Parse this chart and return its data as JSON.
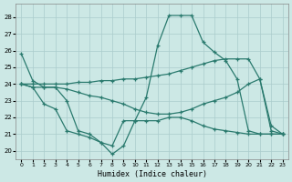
{
  "xlabel": "Humidex (Indice chaleur)",
  "xlim": [
    -0.5,
    23.5
  ],
  "ylim": [
    19.5,
    28.8
  ],
  "yticks": [
    20,
    21,
    22,
    23,
    24,
    25,
    26,
    27,
    28
  ],
  "xticks": [
    0,
    1,
    2,
    3,
    4,
    5,
    6,
    7,
    8,
    9,
    10,
    11,
    12,
    13,
    14,
    15,
    16,
    17,
    18,
    19,
    20,
    21,
    22,
    23
  ],
  "bg_color": "#cce8e5",
  "grid_color": "#aacccc",
  "line_color": "#2a7a6e",
  "series": [
    {
      "x": [
        0,
        1,
        2,
        3,
        4,
        5,
        6,
        7,
        8,
        9,
        10,
        11,
        12,
        13,
        14,
        15,
        16,
        17,
        18,
        19,
        20,
        21,
        22,
        23
      ],
      "y": [
        25.8,
        24.2,
        23.8,
        23.8,
        23.0,
        21.2,
        21.0,
        20.5,
        19.8,
        20.3,
        21.8,
        23.2,
        26.3,
        28.1,
        28.1,
        28.1,
        26.5,
        25.9,
        25.4,
        24.3,
        21.2,
        21.0,
        21.0,
        21.0
      ]
    },
    {
      "x": [
        0,
        1,
        2,
        3,
        4,
        5,
        6,
        7,
        8,
        9,
        10,
        11,
        12,
        13,
        14,
        15,
        16,
        17,
        18,
        19,
        20,
        21,
        22,
        23
      ],
      "y": [
        24.0,
        24.0,
        24.0,
        24.0,
        24.0,
        24.1,
        24.1,
        24.2,
        24.2,
        24.3,
        24.3,
        24.4,
        24.5,
        24.6,
        24.8,
        25.0,
        25.2,
        25.4,
        25.5,
        25.5,
        25.5,
        24.3,
        21.2,
        21.0
      ]
    },
    {
      "x": [
        0,
        1,
        2,
        3,
        4,
        5,
        6,
        7,
        8,
        9,
        10,
        11,
        12,
        13,
        14,
        15,
        16,
        17,
        18,
        19,
        20,
        21,
        22,
        23
      ],
      "y": [
        24.0,
        23.8,
        23.8,
        23.8,
        23.7,
        23.5,
        23.3,
        23.2,
        23.0,
        22.8,
        22.5,
        22.3,
        22.2,
        22.2,
        22.3,
        22.5,
        22.8,
        23.0,
        23.2,
        23.5,
        24.0,
        24.3,
        21.5,
        21.0
      ]
    },
    {
      "x": [
        0,
        1,
        2,
        3,
        4,
        5,
        6,
        7,
        8,
        9,
        10,
        11,
        12,
        13,
        14,
        15,
        16,
        17,
        18,
        19,
        20,
        21,
        22,
        23
      ],
      "y": [
        24.0,
        23.8,
        22.8,
        22.5,
        21.2,
        21.0,
        20.8,
        20.5,
        20.3,
        21.8,
        21.8,
        21.8,
        21.8,
        22.0,
        22.0,
        21.8,
        21.5,
        21.3,
        21.2,
        21.1,
        21.0,
        21.0,
        21.0,
        21.0
      ]
    }
  ]
}
